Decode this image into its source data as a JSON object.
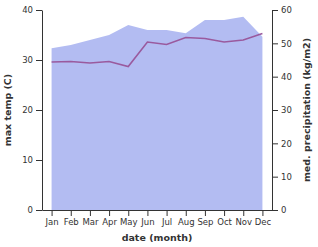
{
  "chart_data": {
    "type": "line",
    "xlabel": "date (month)",
    "ylabel": "max temp (C)",
    "y2label": "med. precipitation (kg/m2)",
    "categories": [
      "Jan",
      "Feb",
      "Mar",
      "Apr",
      "May",
      "Jun",
      "Jul",
      "Aug",
      "Sep",
      "Oct",
      "Nov",
      "Dec"
    ],
    "series": [
      {
        "type": "area",
        "axis": "y2",
        "color": "#b3bcf2",
        "values": [
          48.5,
          49.5,
          51,
          52.5,
          55.5,
          54,
          54,
          53,
          57,
          57,
          58,
          52
        ]
      },
      {
        "type": "line",
        "color": "#9a5a9e",
        "values": [
          29.6,
          29.7,
          29.4,
          29.7,
          28.7,
          33.6,
          33.1,
          34.5,
          34.3,
          33.6,
          34.0,
          35.3
        ]
      }
    ],
    "ylim": [
      0,
      40
    ],
    "yticks": [
      0,
      10,
      20,
      30,
      40
    ],
    "y2lim": [
      0,
      60
    ],
    "y2ticks": [
      0,
      10,
      20,
      30,
      40,
      50,
      60
    ]
  }
}
